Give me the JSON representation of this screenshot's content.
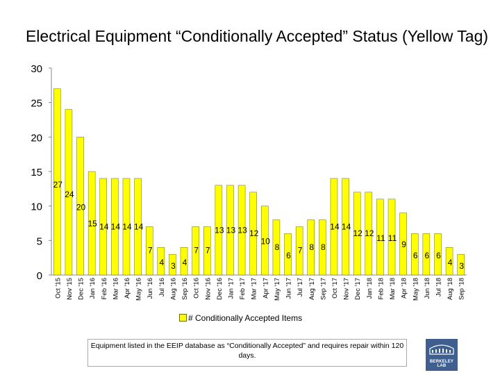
{
  "chart_data": {
    "type": "bar",
    "title": "Electrical Equipment “Conditionally Accepted” Status (Yellow Tag)",
    "xlabel": "",
    "ylabel": "",
    "ylim": [
      0,
      30
    ],
    "yticks": [
      "0",
      "5",
      "10",
      "15",
      "20",
      "25",
      "30"
    ],
    "grid": false,
    "legend_position": "bottom",
    "categories": [
      "Oct '15",
      "Nov '15",
      "Dec '15",
      "Jan '16",
      "Feb '16",
      "Mar '16",
      "Apr '16",
      "May '16",
      "Jun '16",
      "Jul '16",
      "Aug '16",
      "Sep '16",
      "Oct '16",
      "Nov '16",
      "Dec '16",
      "Jan '17",
      "Feb '17",
      "Mar '17",
      "Apr '17",
      "May '17",
      "Jun '17",
      "Jul '17",
      "Aug '17",
      "Sep '17",
      "Oct '17",
      "Nov '17",
      "Dec '17",
      "Jan '18",
      "Feb '18",
      "Mar '18",
      "Apr '18",
      "May '18",
      "Jun '18",
      "Jul '18",
      "Aug '18",
      "Sep '18"
    ],
    "series": [
      {
        "name": "# Conditionally Accepted Items",
        "color": "#ffff00",
        "values": [
          27,
          24,
          20,
          15,
          14,
          14,
          14,
          14,
          7,
          4,
          3,
          4,
          7,
          7,
          13,
          13,
          13,
          12,
          10,
          8,
          6,
          7,
          8,
          8,
          14,
          14,
          12,
          12,
          11,
          11,
          9,
          6,
          6,
          6,
          4,
          3
        ]
      }
    ]
  },
  "legend_label": "# Conditionally Accepted Items",
  "footnote": "Equipment listed in the EEIP database as “Conditionally Accepted” and requires repair within 120 days.",
  "logo_text": "BERKELEY LAB"
}
